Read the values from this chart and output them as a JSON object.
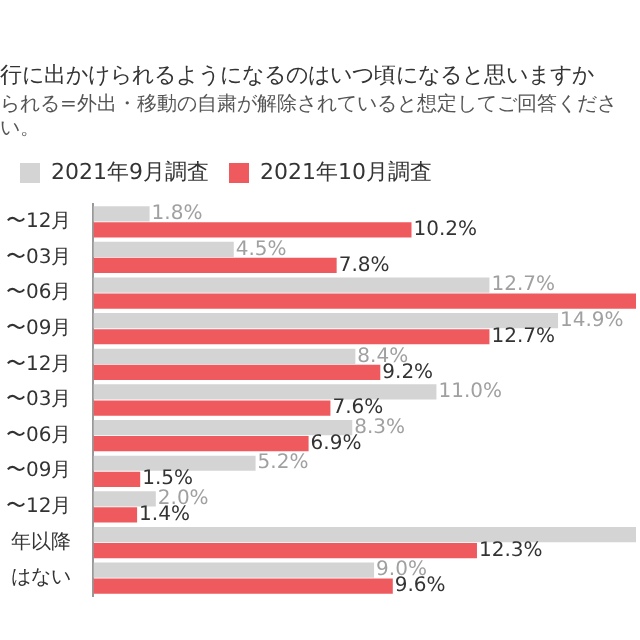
{
  "chart_data": {
    "type": "bar",
    "orientation": "horizontal",
    "title": "行に出かけられるようになるのはいつ頃になると思いますか",
    "subtitle": "られる=外出・移動の自粛が解除されていると想定してご回答ください。",
    "categories": [
      "〜12月",
      "〜03月",
      "〜06月",
      "〜09月",
      "〜12月",
      "〜03月",
      "〜06月",
      "〜09月",
      "〜12月",
      "年以降",
      "はない"
    ],
    "series": [
      {
        "name": "2021年9月調査",
        "color": "#d4d4d4",
        "values": [
          1.8,
          4.5,
          12.7,
          14.9,
          8.4,
          11.0,
          8.3,
          5.2,
          2.0,
          17.4,
          9.0
        ],
        "value_labels": [
          "1.8%",
          "4.5%",
          "12.7%",
          "14.9%",
          "8.4%",
          "11.0%",
          "8.3%",
          "5.2%",
          "2.0%",
          null,
          "9.0%"
        ]
      },
      {
        "name": "2021年10月調査",
        "color": "#ef5a5e",
        "values": [
          10.2,
          7.8,
          17.4,
          12.7,
          9.2,
          7.6,
          6.9,
          1.5,
          1.4,
          12.3,
          9.6
        ],
        "value_labels": [
          "10.2%",
          "7.8%",
          null,
          "12.7%",
          "9.2%",
          "7.6%",
          "6.9%",
          "1.5%",
          "1.4%",
          "12.3%",
          "9.6%"
        ]
      }
    ],
    "xlim": [
      0,
      17.4
    ],
    "tick_labels": "y",
    "legend": "top left"
  }
}
